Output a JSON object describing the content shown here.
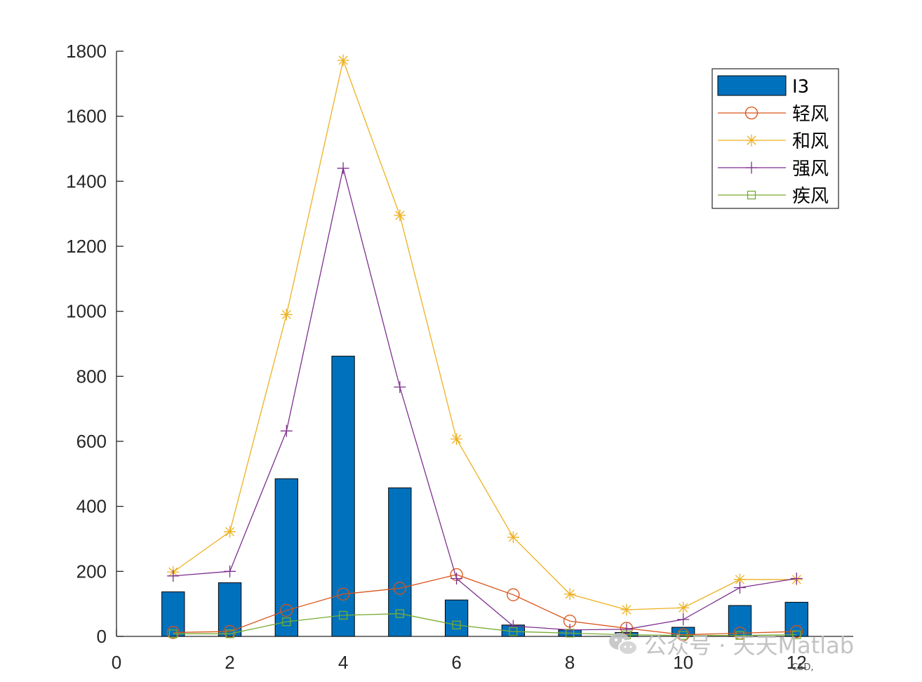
{
  "chart_data": {
    "type": "bar+line",
    "title": "",
    "xlabel": "",
    "ylabel": "",
    "xlim": [
      0,
      13
    ],
    "ylim": [
      0,
      1800
    ],
    "x_ticks": [
      "0",
      "2",
      "4",
      "6",
      "8",
      "10",
      "12"
    ],
    "x_tick_values": [
      0,
      2,
      4,
      6,
      8,
      10,
      12
    ],
    "y_ticks": [
      "0",
      "200",
      "400",
      "600",
      "800",
      "1000",
      "1200",
      "1400",
      "1600",
      "1800"
    ],
    "y_tick_values": [
      0,
      200,
      400,
      600,
      800,
      1000,
      1200,
      1400,
      1600,
      1800
    ],
    "x": [
      1,
      2,
      3,
      4,
      5,
      6,
      7,
      8,
      9,
      10,
      11,
      12
    ],
    "bar_series": {
      "name": "I3",
      "color": "#0072BD",
      "values": [
        137,
        165,
        485,
        862,
        457,
        112,
        35,
        20,
        12,
        28,
        95,
        105
      ]
    },
    "line_series": [
      {
        "name": "轻风",
        "color": "#D95319",
        "marker": "circle",
        "values": [
          12,
          15,
          80,
          130,
          148,
          190,
          128,
          47,
          25,
          5,
          10,
          15
        ]
      },
      {
        "name": "和风",
        "color": "#EDB120",
        "marker": "asterisk",
        "values": [
          198,
          322,
          990,
          1772,
          1295,
          607,
          305,
          130,
          82,
          88,
          175,
          175
        ]
      },
      {
        "name": "强风",
        "color": "#7E2F8E",
        "marker": "plus",
        "values": [
          186,
          200,
          632,
          1440,
          767,
          178,
          32,
          20,
          22,
          52,
          150,
          178
        ]
      },
      {
        "name": "疾风",
        "color": "#77AC30",
        "marker": "square",
        "values": [
          8,
          8,
          45,
          65,
          70,
          35,
          15,
          10,
          5,
          3,
          3,
          5
        ]
      }
    ],
    "legend_position": "top-right"
  },
  "watermark": {
    "text": "公众号 · 天天Matlab",
    "icon": "wechat-icon"
  },
  "corner_text": "CSD,"
}
